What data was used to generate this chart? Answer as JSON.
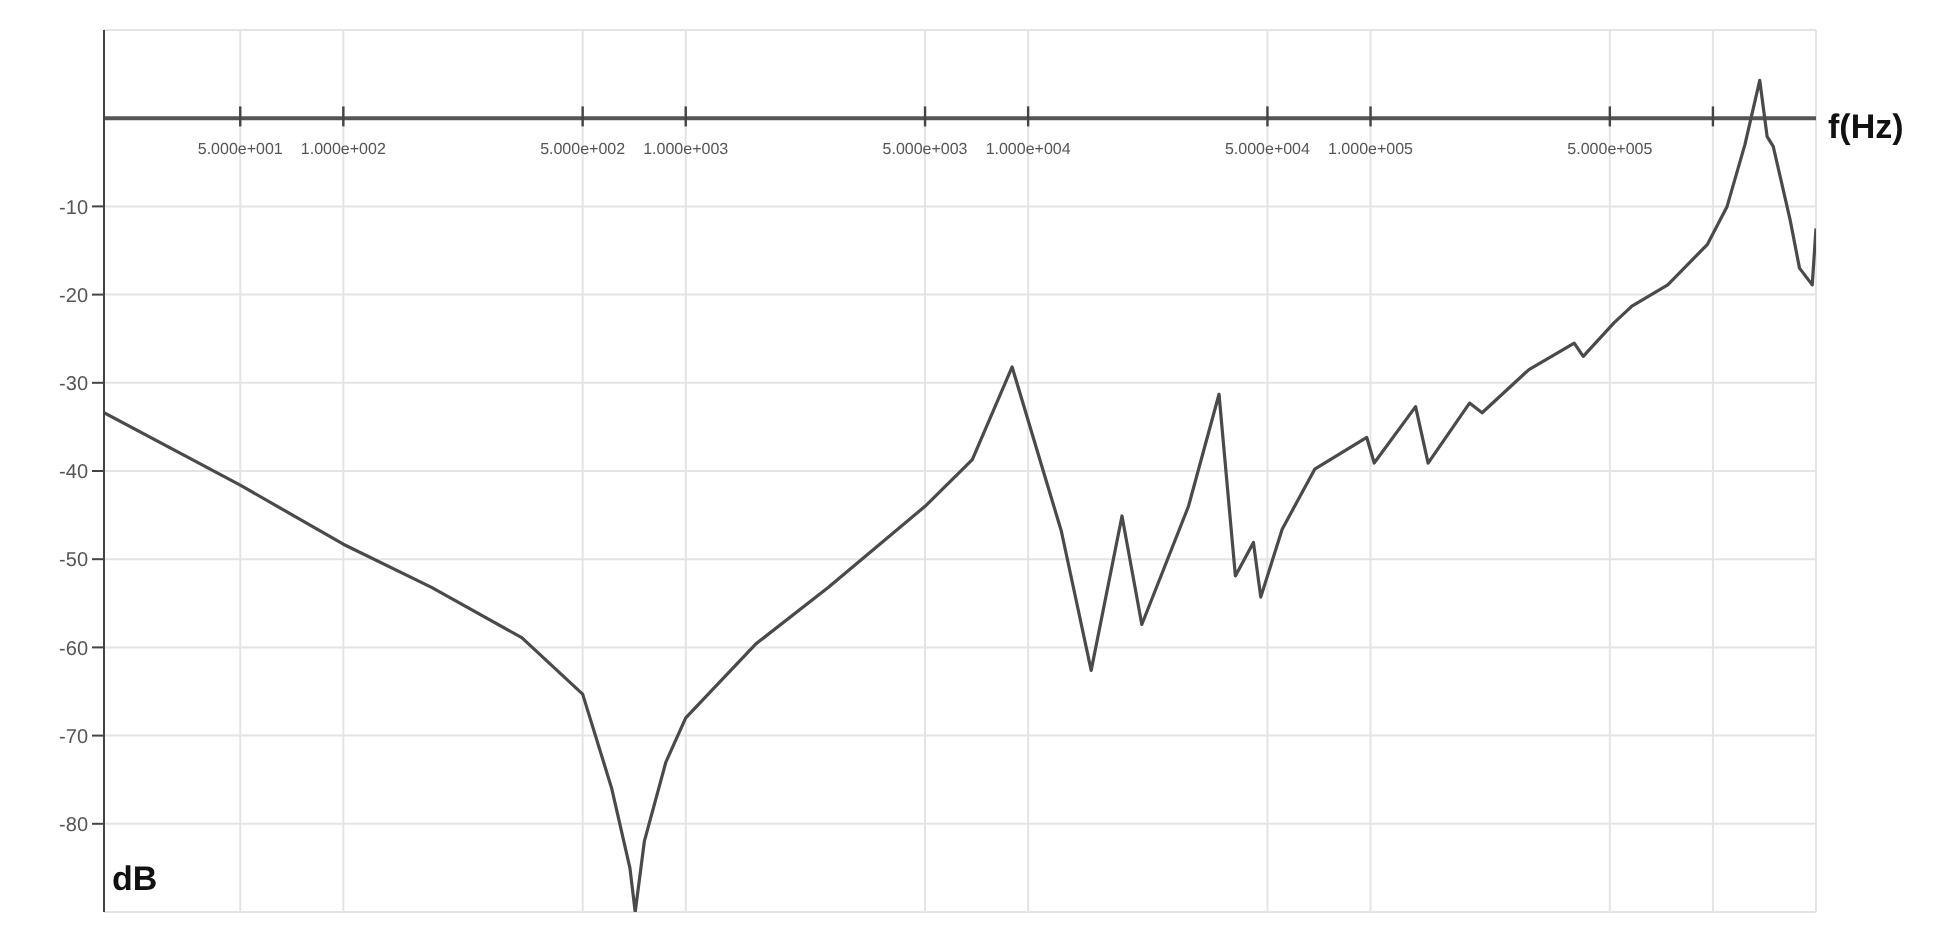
{
  "chart_data": {
    "type": "line",
    "xlabel": "f(Hz)",
    "ylabel": "dB",
    "log": "x",
    "grid": true,
    "marker": "none",
    "line_style": "solid",
    "color": "#4a4a4a",
    "xlim": [
      20,
      2000000
    ],
    "ylim": [
      -90,
      10
    ],
    "xticks": [
      {
        "value": 50,
        "label": "5.000e+001"
      },
      {
        "value": 100,
        "label": "1.000e+002"
      },
      {
        "value": 500,
        "label": "5.000e+002"
      },
      {
        "value": 1000,
        "label": "1.000e+003"
      },
      {
        "value": 5000,
        "label": "5.000e+003"
      },
      {
        "value": 10000,
        "label": "1.000e+004"
      },
      {
        "value": 50000,
        "label": "5.000e+004"
      },
      {
        "value": 100000,
        "label": "1.000e+005"
      },
      {
        "value": 500000,
        "label": "5.000e+005"
      },
      {
        "value": 1000000,
        "label": null
      }
    ],
    "yticks": [
      -80,
      -70,
      -60,
      -50,
      -40,
      -30,
      -20,
      -10
    ],
    "x": [
      20,
      50,
      100,
      181,
      332,
      500,
      608,
      687,
      712,
      757,
      875,
      1000,
      1603,
      2606,
      5000,
      6870,
      8980,
      11150,
      12500,
      15280,
      18800,
      21480,
      29400,
      36100,
      40300,
      45500,
      47800,
      55200,
      68700,
      97500,
      102500,
      135400,
      147300,
      194600,
      211800,
      290200,
      393500,
      418000,
      514000,
      580000,
      738000,
      964000,
      1100000,
      1240000,
      1370000,
      1440000,
      1500000,
      1680000,
      1790000,
      1950000,
      2000000
    ],
    "values": [
      -33.4,
      -41.6,
      -48.3,
      -53.2,
      -58.9,
      -65.3,
      -76,
      -85,
      -90,
      -82,
      -73,
      -68,
      -59.6,
      -53.2,
      -44,
      -38.7,
      -28.2,
      -40.4,
      -46.8,
      -62.6,
      -45.1,
      -57.4,
      -44,
      -31.3,
      -51.9,
      -48.1,
      -54.3,
      -46.6,
      -39.8,
      -36.2,
      -39.1,
      -32.7,
      -39.1,
      -32.3,
      -33.4,
      -28.5,
      -25.5,
      -27,
      -23.2,
      -21.3,
      -18.9,
      -14.3,
      -10,
      -3,
      4.3,
      -2.1,
      -3.2,
      -11.5,
      -17,
      -18.9,
      -12.5
    ]
  }
}
